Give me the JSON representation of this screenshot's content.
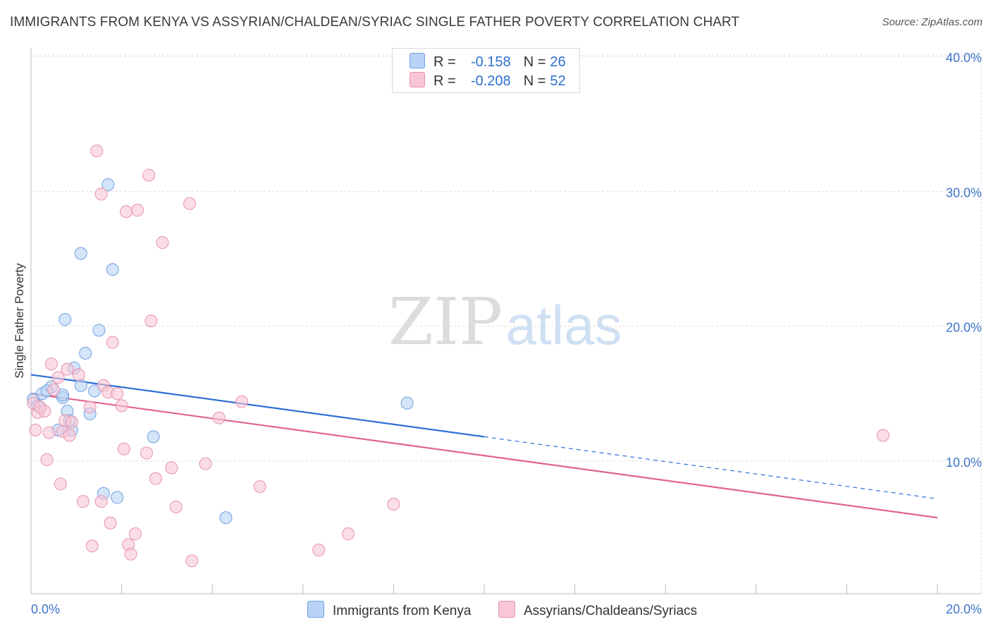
{
  "header": {
    "title": "IMMIGRANTS FROM KENYA VS ASSYRIAN/CHALDEAN/SYRIAC SINGLE FATHER POVERTY CORRELATION CHART",
    "source": "Source: ZipAtlas.com"
  },
  "watermark": {
    "zip": "ZIP",
    "atlas": "atlas"
  },
  "legend": {
    "series1": {
      "r_label": "R =",
      "r_value": "-0.158",
      "n_label": "N =",
      "n_value": "26"
    },
    "series2": {
      "r_label": "R =",
      "r_value": "-0.208",
      "n_label": "N =",
      "n_value": "52"
    }
  },
  "bottom_legend": {
    "series1": "Immigrants from Kenya",
    "series2": "Assyrians/Chaldeans/Syriacs"
  },
  "colors": {
    "blue_fill": "#b8d3f5",
    "blue_stroke": "#6f9fe0",
    "blue_line": "#2f6fd6",
    "pink_fill": "#f8c6d6",
    "pink_stroke": "#e692ae",
    "pink_line": "#e0648f",
    "tick_label": "#3d74c9",
    "grid": "#dddddd"
  },
  "chart_data": {
    "type": "scatter",
    "title": "IMMIGRANTS FROM KENYA VS ASSYRIAN/CHALDEAN/SYRIAC SINGLE FATHER POVERTY CORRELATION CHART",
    "xlabel": "",
    "ylabel": "Single Father Poverty",
    "xlim": [
      0,
      20
    ],
    "ylim": [
      0,
      42
    ],
    "x_tick_labels": [
      "0.0%",
      "20.0%"
    ],
    "y_ticks": [
      10,
      20,
      30,
      40
    ],
    "y_tick_labels": [
      "10.0%",
      "20.0%",
      "30.0%",
      "40.0%"
    ],
    "series": [
      {
        "name": "Immigrants from Kenya",
        "r": -0.158,
        "n": 26,
        "points": [
          [
            0.05,
            14.6
          ],
          [
            0.15,
            14.1
          ],
          [
            0.25,
            15.0
          ],
          [
            0.45,
            15.5
          ],
          [
            0.35,
            15.2
          ],
          [
            0.7,
            14.7
          ],
          [
            0.8,
            13.7
          ],
          [
            0.75,
            20.5
          ],
          [
            0.95,
            16.9
          ],
          [
            1.1,
            15.6
          ],
          [
            0.6,
            12.3
          ],
          [
            0.7,
            14.9
          ],
          [
            0.9,
            12.3
          ],
          [
            1.3,
            13.5
          ],
          [
            1.4,
            15.2
          ],
          [
            1.5,
            19.7
          ],
          [
            1.6,
            7.6
          ],
          [
            1.9,
            7.3
          ],
          [
            1.8,
            24.2
          ],
          [
            1.7,
            30.5
          ],
          [
            1.1,
            25.4
          ],
          [
            0.85,
            13.0
          ],
          [
            1.2,
            18.0
          ],
          [
            2.7,
            11.8
          ],
          [
            4.3,
            5.8
          ],
          [
            8.3,
            14.3
          ]
        ]
      },
      {
        "name": "Assyrians/Chaldeans/Syriacs",
        "r": -0.208,
        "n": 52,
        "points": [
          [
            0.05,
            14.3
          ],
          [
            0.15,
            13.6
          ],
          [
            0.1,
            12.3
          ],
          [
            0.3,
            13.7
          ],
          [
            0.35,
            10.1
          ],
          [
            0.4,
            12.1
          ],
          [
            0.45,
            17.2
          ],
          [
            0.5,
            15.3
          ],
          [
            0.6,
            16.2
          ],
          [
            0.65,
            8.3
          ],
          [
            0.7,
            12.2
          ],
          [
            0.75,
            13.0
          ],
          [
            0.8,
            16.8
          ],
          [
            0.85,
            11.9
          ],
          [
            0.9,
            12.9
          ],
          [
            1.05,
            16.4
          ],
          [
            1.15,
            7.0
          ],
          [
            1.3,
            14.0
          ],
          [
            1.35,
            3.7
          ],
          [
            1.45,
            33.0
          ],
          [
            1.55,
            29.8
          ],
          [
            1.55,
            7.0
          ],
          [
            1.6,
            15.6
          ],
          [
            1.7,
            15.1
          ],
          [
            1.75,
            5.4
          ],
          [
            1.8,
            18.8
          ],
          [
            1.9,
            15.0
          ],
          [
            2.0,
            14.1
          ],
          [
            2.05,
            10.9
          ],
          [
            2.1,
            28.5
          ],
          [
            2.15,
            3.8
          ],
          [
            2.2,
            3.1
          ],
          [
            2.3,
            4.6
          ],
          [
            2.35,
            28.6
          ],
          [
            2.55,
            10.6
          ],
          [
            2.6,
            31.2
          ],
          [
            2.65,
            20.4
          ],
          [
            2.75,
            8.7
          ],
          [
            2.9,
            26.2
          ],
          [
            3.1,
            9.5
          ],
          [
            3.2,
            6.6
          ],
          [
            3.5,
            29.1
          ],
          [
            3.55,
            2.6
          ],
          [
            3.85,
            9.8
          ],
          [
            4.15,
            13.2
          ],
          [
            4.65,
            14.4
          ],
          [
            5.05,
            8.1
          ],
          [
            6.35,
            3.4
          ],
          [
            7.0,
            4.6
          ],
          [
            8.0,
            6.8
          ],
          [
            18.8,
            11.9
          ],
          [
            0.2,
            14.0
          ]
        ]
      }
    ],
    "trend_lines": [
      {
        "series": "Immigrants from Kenya",
        "x": [
          0,
          10
        ],
        "y": [
          16.4,
          11.8
        ],
        "dashed_extension_to": [
          20,
          7.2
        ]
      },
      {
        "series": "Assyrians/Chaldeans/Syriacs",
        "x": [
          0,
          20
        ],
        "y": [
          15.0,
          5.8
        ]
      }
    ],
    "grid": true,
    "legend_position": "top-center"
  }
}
